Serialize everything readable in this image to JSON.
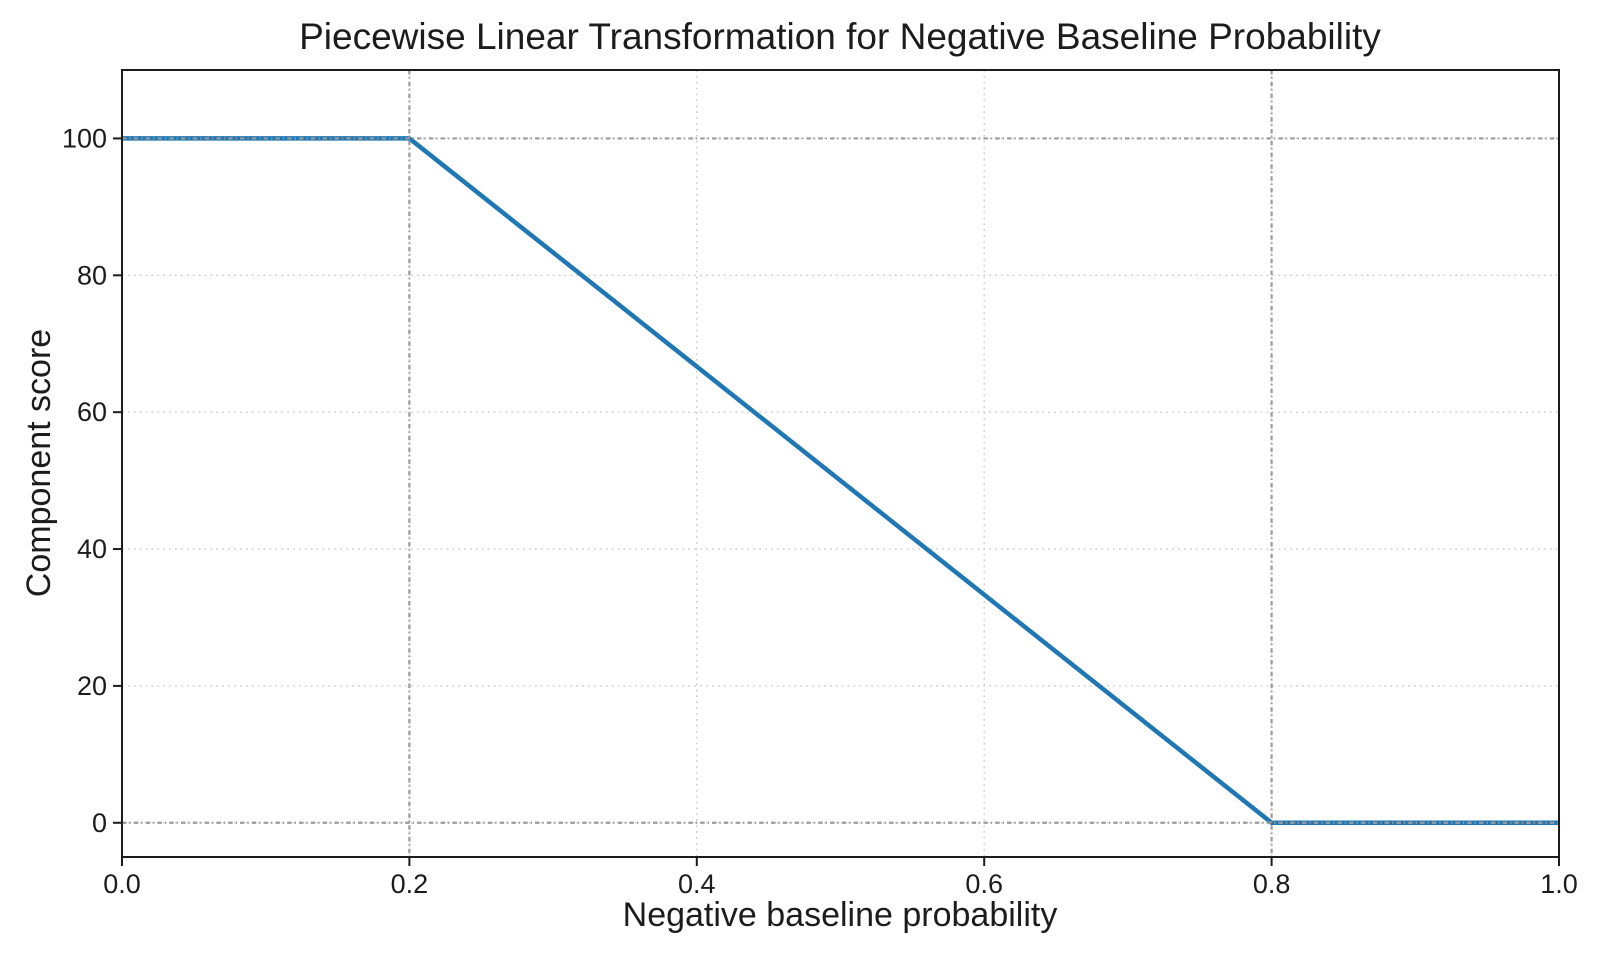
{
  "chart_data": {
    "type": "line",
    "title": "Piecewise Linear Transformation for Negative Baseline Probability",
    "xlabel": "Negative baseline probability",
    "ylabel": "Component score",
    "xlim": [
      0.0,
      1.0
    ],
    "ylim": [
      -5,
      110
    ],
    "x_ticks": [
      0.0,
      0.2,
      0.4,
      0.6,
      0.8,
      1.0
    ],
    "x_tick_labels": [
      "0.0",
      "0.2",
      "0.4",
      "0.6",
      "0.8",
      "1.0"
    ],
    "y_ticks": [
      0,
      20,
      40,
      60,
      80,
      100
    ],
    "y_tick_labels": [
      "0",
      "20",
      "40",
      "60",
      "80",
      "100"
    ],
    "series": [
      {
        "name": "component-score",
        "color": "#1f77b4",
        "line_width": 4.5,
        "points": [
          [
            0.0,
            100
          ],
          [
            0.2,
            100
          ],
          [
            0.8,
            0
          ],
          [
            1.0,
            0
          ]
        ]
      }
    ],
    "grid": {
      "on": true,
      "style": "dotted",
      "color": "#c9c9c9"
    },
    "reference_lines": {
      "vertical_x": [
        0.2,
        0.8
      ],
      "horizontal_y": [
        100,
        0
      ],
      "style": "dash-dot",
      "color": "#9b9b9b"
    },
    "colors": {
      "background": "#ffffff",
      "line": "#1f77b4",
      "text": "#1c1c1c",
      "spine": "#1c1c1c"
    },
    "legend": {
      "shown": false
    }
  }
}
